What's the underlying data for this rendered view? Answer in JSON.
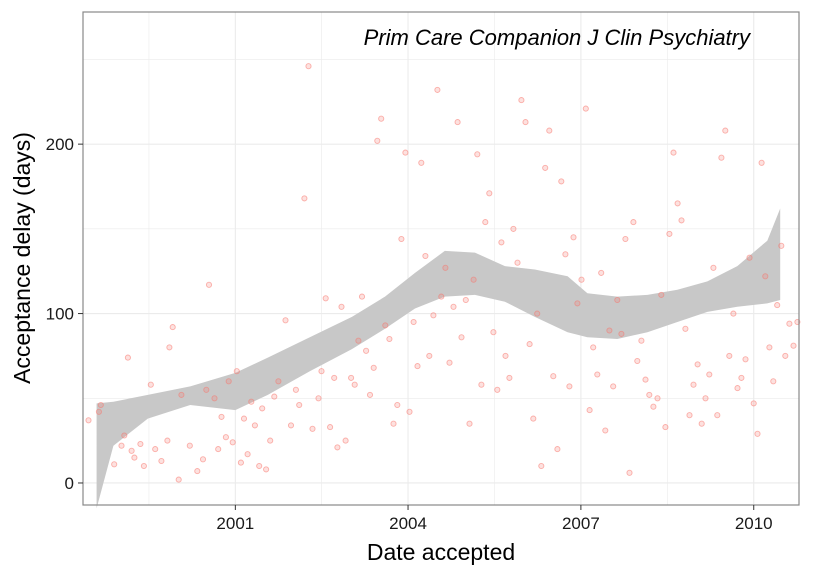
{
  "chart_data": {
    "type": "scatter",
    "title": "Prim Care Companion J Clin Psychiatry",
    "xlabel": "Date accepted",
    "ylabel": "Acceptance delay (days)",
    "x_tick_labels": [
      "2001",
      "2004",
      "2007",
      "2010"
    ],
    "x_ticks": [
      "2001-01-01",
      "2004-01-01",
      "2007-01-01",
      "2010-01-01"
    ],
    "y_tick_labels": [
      "0",
      "100",
      "200"
    ],
    "y_ticks": [
      0,
      100,
      200
    ],
    "xlim": [
      "1998-05-11",
      "2010-10-15"
    ],
    "ylim": [
      -13,
      278
    ],
    "grid": true,
    "colors": {
      "points": "#f8766d",
      "smooth_band": "#c8c8c8",
      "grid": "#ebebeb",
      "panel_border": "#888888"
    },
    "smooth": {
      "method": "loess",
      "x": [
        "1998-08-05",
        "1998-11-20",
        "1999-06-26",
        "2000-03-21",
        "2001-01-01",
        "2001-07-26",
        "2002-04-18",
        "2003-01-10",
        "2003-08-08",
        "2004-02-14",
        "2004-08-21",
        "2005-02-28",
        "2005-09-06",
        "2006-03-15",
        "2006-10-09",
        "2007-02-11",
        "2007-08-20",
        "2008-02-27",
        "2008-09-04",
        "2009-03-13",
        "2009-09-19",
        "2010-03-28",
        "2010-06-18"
      ],
      "lower": [
        -15,
        22,
        38,
        46,
        43,
        52,
        66,
        79,
        91,
        103,
        110,
        111,
        107,
        98,
        89,
        86,
        85,
        89,
        95,
        101,
        104,
        106,
        108
      ],
      "upper": [
        47,
        48,
        52,
        57,
        65,
        74,
        86,
        98,
        110,
        124,
        137,
        136,
        128,
        126,
        122,
        112,
        110,
        111,
        114,
        119,
        128,
        143,
        162
      ]
    },
    "points": [
      {
        "x": "1998-06-15",
        "y": 37
      },
      {
        "x": "1998-08-20",
        "y": 42
      },
      {
        "x": "1998-09-01",
        "y": 46
      },
      {
        "x": "1998-11-25",
        "y": 11
      },
      {
        "x": "1999-01-10",
        "y": 22
      },
      {
        "x": "1999-01-28",
        "y": 28
      },
      {
        "x": "1999-02-20",
        "y": 74
      },
      {
        "x": "1999-03-15",
        "y": 19
      },
      {
        "x": "1999-04-02",
        "y": 15
      },
      {
        "x": "1999-05-10",
        "y": 23
      },
      {
        "x": "1999-06-01",
        "y": 10
      },
      {
        "x": "1999-07-15",
        "y": 58
      },
      {
        "x": "1999-08-12",
        "y": 20
      },
      {
        "x": "1999-09-20",
        "y": 13
      },
      {
        "x": "1999-10-28",
        "y": 25
      },
      {
        "x": "1999-11-10",
        "y": 80
      },
      {
        "x": "1999-12-01",
        "y": 92
      },
      {
        "x": "2000-01-08",
        "y": 2
      },
      {
        "x": "2000-01-25",
        "y": 52
      },
      {
        "x": "2000-03-18",
        "y": 22
      },
      {
        "x": "2000-05-05",
        "y": 7
      },
      {
        "x": "2000-06-10",
        "y": 14
      },
      {
        "x": "2000-07-01",
        "y": 55
      },
      {
        "x": "2000-07-18",
        "y": 117
      },
      {
        "x": "2000-08-22",
        "y": 50
      },
      {
        "x": "2000-09-14",
        "y": 20
      },
      {
        "x": "2000-10-05",
        "y": 39
      },
      {
        "x": "2000-11-02",
        "y": 27
      },
      {
        "x": "2000-11-20",
        "y": 60
      },
      {
        "x": "2000-12-15",
        "y": 24
      },
      {
        "x": "2001-01-10",
        "y": 66
      },
      {
        "x": "2001-02-05",
        "y": 12
      },
      {
        "x": "2001-02-25",
        "y": 38
      },
      {
        "x": "2001-03-20",
        "y": 17
      },
      {
        "x": "2001-04-12",
        "y": 48
      },
      {
        "x": "2001-05-05",
        "y": 34
      },
      {
        "x": "2001-06-01",
        "y": 10
      },
      {
        "x": "2001-06-20",
        "y": 44
      },
      {
        "x": "2001-07-15",
        "y": 8
      },
      {
        "x": "2001-08-10",
        "y": 25
      },
      {
        "x": "2001-09-05",
        "y": 51
      },
      {
        "x": "2001-10-01",
        "y": 60
      },
      {
        "x": "2001-11-15",
        "y": 96
      },
      {
        "x": "2001-12-20",
        "y": 34
      },
      {
        "x": "2002-01-20",
        "y": 55
      },
      {
        "x": "2002-02-10",
        "y": 46
      },
      {
        "x": "2002-03-15",
        "y": 168
      },
      {
        "x": "2002-04-10",
        "y": 246
      },
      {
        "x": "2002-05-05",
        "y": 32
      },
      {
        "x": "2002-06-12",
        "y": 50
      },
      {
        "x": "2002-07-01",
        "y": 66
      },
      {
        "x": "2002-07-28",
        "y": 109
      },
      {
        "x": "2002-08-25",
        "y": 33
      },
      {
        "x": "2002-09-20",
        "y": 62
      },
      {
        "x": "2002-10-10",
        "y": 21
      },
      {
        "x": "2002-11-05",
        "y": 104
      },
      {
        "x": "2002-12-01",
        "y": 25
      },
      {
        "x": "2003-01-05",
        "y": 62
      },
      {
        "x": "2003-01-28",
        "y": 58
      },
      {
        "x": "2003-02-20",
        "y": 84
      },
      {
        "x": "2003-03-15",
        "y": 110
      },
      {
        "x": "2003-04-10",
        "y": 78
      },
      {
        "x": "2003-05-05",
        "y": 52
      },
      {
        "x": "2003-05-28",
        "y": 68
      },
      {
        "x": "2003-06-20",
        "y": 202
      },
      {
        "x": "2003-07-15",
        "y": 215
      },
      {
        "x": "2003-08-10",
        "y": 93
      },
      {
        "x": "2003-09-05",
        "y": 85
      },
      {
        "x": "2003-10-01",
        "y": 35
      },
      {
        "x": "2003-10-25",
        "y": 46
      },
      {
        "x": "2003-11-20",
        "y": 144
      },
      {
        "x": "2003-12-15",
        "y": 195
      },
      {
        "x": "2004-01-10",
        "y": 42
      },
      {
        "x": "2004-02-05",
        "y": 95
      },
      {
        "x": "2004-03-01",
        "y": 69
      },
      {
        "x": "2004-03-25",
        "y": 189
      },
      {
        "x": "2004-04-20",
        "y": 134
      },
      {
        "x": "2004-05-15",
        "y": 75
      },
      {
        "x": "2004-06-10",
        "y": 99
      },
      {
        "x": "2004-07-05",
        "y": 232
      },
      {
        "x": "2004-07-30",
        "y": 110
      },
      {
        "x": "2004-08-25",
        "y": 127
      },
      {
        "x": "2004-09-20",
        "y": 71
      },
      {
        "x": "2004-10-15",
        "y": 104
      },
      {
        "x": "2004-11-10",
        "y": 213
      },
      {
        "x": "2004-12-05",
        "y": 86
      },
      {
        "x": "2005-01-01",
        "y": 108
      },
      {
        "x": "2005-01-25",
        "y": 35
      },
      {
        "x": "2005-02-20",
        "y": 120
      },
      {
        "x": "2005-03-15",
        "y": 194
      },
      {
        "x": "2005-04-10",
        "y": 58
      },
      {
        "x": "2005-05-05",
        "y": 154
      },
      {
        "x": "2005-05-30",
        "y": 171
      },
      {
        "x": "2005-06-25",
        "y": 89
      },
      {
        "x": "2005-07-20",
        "y": 55
      },
      {
        "x": "2005-08-15",
        "y": 142
      },
      {
        "x": "2005-09-10",
        "y": 75
      },
      {
        "x": "2005-10-05",
        "y": 62
      },
      {
        "x": "2005-10-30",
        "y": 150
      },
      {
        "x": "2005-11-25",
        "y": 130
      },
      {
        "x": "2005-12-20",
        "y": 226
      },
      {
        "x": "2006-01-15",
        "y": 213
      },
      {
        "x": "2006-02-10",
        "y": 82
      },
      {
        "x": "2006-03-05",
        "y": 38
      },
      {
        "x": "2006-03-30",
        "y": 100
      },
      {
        "x": "2006-04-25",
        "y": 10
      },
      {
        "x": "2006-05-20",
        "y": 186
      },
      {
        "x": "2006-06-15",
        "y": 208
      },
      {
        "x": "2006-07-10",
        "y": 63
      },
      {
        "x": "2006-08-05",
        "y": 20
      },
      {
        "x": "2006-08-30",
        "y": 178
      },
      {
        "x": "2006-09-25",
        "y": 135
      },
      {
        "x": "2006-10-20",
        "y": 57
      },
      {
        "x": "2006-11-15",
        "y": 145
      },
      {
        "x": "2006-12-10",
        "y": 106
      },
      {
        "x": "2007-01-05",
        "y": 120
      },
      {
        "x": "2007-02-01",
        "y": 221
      },
      {
        "x": "2007-02-25",
        "y": 43
      },
      {
        "x": "2007-03-20",
        "y": 80
      },
      {
        "x": "2007-04-15",
        "y": 64
      },
      {
        "x": "2007-05-10",
        "y": 124
      },
      {
        "x": "2007-06-05",
        "y": 31
      },
      {
        "x": "2007-07-01",
        "y": 90
      },
      {
        "x": "2007-07-25",
        "y": 57
      },
      {
        "x": "2007-08-20",
        "y": 108
      },
      {
        "x": "2007-09-15",
        "y": 88
      },
      {
        "x": "2007-10-10",
        "y": 144
      },
      {
        "x": "2007-11-05",
        "y": 6
      },
      {
        "x": "2007-11-30",
        "y": 154
      },
      {
        "x": "2007-12-25",
        "y": 72
      },
      {
        "x": "2008-01-20",
        "y": 84
      },
      {
        "x": "2008-02-15",
        "y": 61
      },
      {
        "x": "2008-03-10",
        "y": 52
      },
      {
        "x": "2008-04-05",
        "y": 45
      },
      {
        "x": "2008-05-01",
        "y": 50
      },
      {
        "x": "2008-05-25",
        "y": 111
      },
      {
        "x": "2008-06-20",
        "y": 33
      },
      {
        "x": "2008-07-15",
        "y": 147
      },
      {
        "x": "2008-08-10",
        "y": 195
      },
      {
        "x": "2008-09-05",
        "y": 165
      },
      {
        "x": "2008-09-30",
        "y": 155
      },
      {
        "x": "2008-10-25",
        "y": 91
      },
      {
        "x": "2008-11-20",
        "y": 40
      },
      {
        "x": "2008-12-15",
        "y": 58
      },
      {
        "x": "2009-01-10",
        "y": 70
      },
      {
        "x": "2009-02-05",
        "y": 35
      },
      {
        "x": "2009-03-01",
        "y": 50
      },
      {
        "x": "2009-03-25",
        "y": 64
      },
      {
        "x": "2009-04-20",
        "y": 127
      },
      {
        "x": "2009-05-15",
        "y": 40
      },
      {
        "x": "2009-06-10",
        "y": 192
      },
      {
        "x": "2009-07-05",
        "y": 208
      },
      {
        "x": "2009-07-30",
        "y": 75
      },
      {
        "x": "2009-08-25",
        "y": 100
      },
      {
        "x": "2009-09-20",
        "y": 56
      },
      {
        "x": "2009-10-15",
        "y": 62
      },
      {
        "x": "2009-11-10",
        "y": 73
      },
      {
        "x": "2009-12-05",
        "y": 133
      },
      {
        "x": "2010-01-01",
        "y": 47
      },
      {
        "x": "2010-01-25",
        "y": 29
      },
      {
        "x": "2010-02-20",
        "y": 189
      },
      {
        "x": "2010-03-15",
        "y": 122
      },
      {
        "x": "2010-04-10",
        "y": 80
      },
      {
        "x": "2010-05-05",
        "y": 60
      },
      {
        "x": "2010-05-30",
        "y": 105
      },
      {
        "x": "2010-06-25",
        "y": 140
      },
      {
        "x": "2010-07-20",
        "y": 75
      },
      {
        "x": "2010-08-15",
        "y": 94
      },
      {
        "x": "2010-09-10",
        "y": 81
      },
      {
        "x": "2010-10-05",
        "y": 95
      }
    ]
  }
}
